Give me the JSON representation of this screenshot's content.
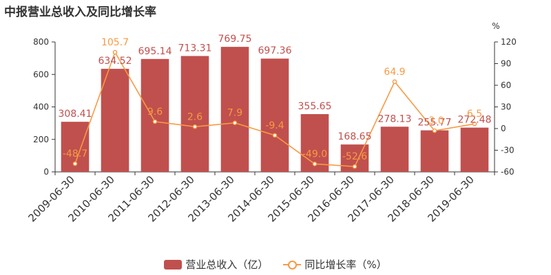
{
  "title": "中报营业总收入及同比增长率",
  "colors": {
    "bar": "#c0504d",
    "line": "#f79a45",
    "bar_label": "#c0504d",
    "axis": "#333333",
    "grid": "#e6e6e6"
  },
  "legend": {
    "bar_label": "营业总收入（亿）",
    "line_label": "同比增长率（%）"
  },
  "chart_data": {
    "type": "bar",
    "title": "中报营业总收入及同比增长率",
    "categories": [
      "2009-06-30",
      "2010-06-30",
      "2011-06-30",
      "2012-06-30",
      "2013-06-30",
      "2014-06-30",
      "2015-06-30",
      "2016-06-30",
      "2017-06-30",
      "2018-06-30",
      "2019-06-30"
    ],
    "series": [
      {
        "name": "营业总收入（亿）",
        "type": "bar",
        "axis": "left",
        "values": [
          308.41,
          634.52,
          695.14,
          713.31,
          769.75,
          697.36,
          355.65,
          168.65,
          278.13,
          255.77,
          272.48
        ]
      },
      {
        "name": "同比增长率（%）",
        "type": "line",
        "axis": "right",
        "values": [
          -48.7,
          105.7,
          9.6,
          2.6,
          7.9,
          -9.4,
          -49.0,
          -52.6,
          64.9,
          -3.0,
          6.5
        ]
      }
    ],
    "y_left": {
      "range": [
        0,
        800
      ],
      "ticks": [
        0,
        200,
        400,
        600,
        800
      ]
    },
    "y_right": {
      "unit": "%",
      "range": [
        -60,
        120
      ],
      "ticks": [
        -60,
        -30,
        0,
        30,
        60,
        90,
        120
      ]
    },
    "grid": false,
    "legend_position": "bottom"
  }
}
